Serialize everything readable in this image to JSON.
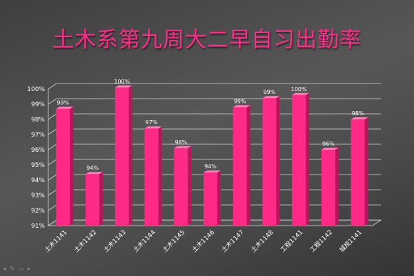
{
  "chart_data": {
    "type": "bar",
    "title": "土木系第九周大二早自习出勤率",
    "categories": [
      "土木1141",
      "土木1142",
      "土木1143",
      "土木1144",
      "土木1145",
      "土木1146",
      "土木1147",
      "土木1148",
      "工程1141",
      "工程1142",
      "城规1141"
    ],
    "values": [
      98.7,
      94.4,
      100.1,
      97.4,
      96.1,
      94.5,
      98.8,
      99.4,
      99.6,
      96.0,
      98.0
    ],
    "data_labels": [
      "99%",
      "94%",
      "100%",
      "97%",
      "96%",
      "94%",
      "99%",
      "99%",
      "100%",
      "96%",
      "98%"
    ],
    "y_ticks": [
      "91%",
      "92%",
      "93%",
      "94%",
      "95%",
      "96%",
      "97%",
      "98%",
      "99%",
      "100%"
    ],
    "ylim": [
      91,
      100
    ],
    "grid": true,
    "legend": "none"
  },
  "colors": {
    "bar_front": "#ff2a86",
    "bar_side": "#b8155c",
    "bar_top": "#ff7fb6",
    "title": "#ff2d8a",
    "text": "#ffffff",
    "grid": "#d9d9d9"
  },
  "nav_icons": [
    "back-arrow-icon",
    "pen-icon",
    "slide-menu-icon",
    "forward-arrow-icon"
  ]
}
